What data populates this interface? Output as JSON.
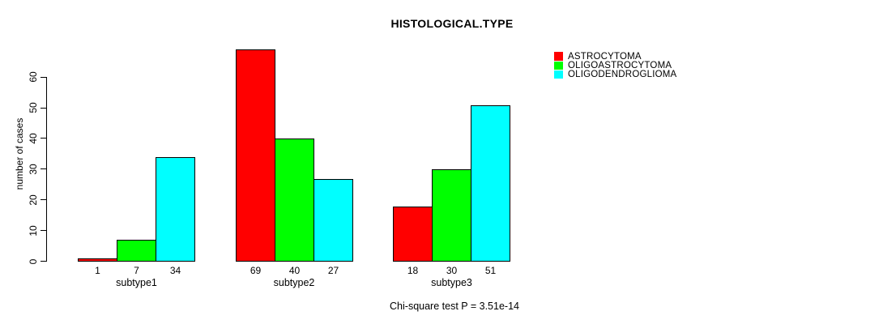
{
  "chart_data": {
    "type": "bar",
    "title": "HISTOLOGICAL.TYPE",
    "ylabel": "number of cases",
    "xlabel": "",
    "categories": [
      "subtype1",
      "subtype2",
      "subtype3"
    ],
    "series": [
      {
        "name": "ASTROCYTOMA",
        "color": "#ff0000",
        "values": [
          1,
          69,
          18
        ]
      },
      {
        "name": "OLIGOASTROCYTOMA",
        "color": "#00ff00",
        "values": [
          7,
          40,
          30
        ]
      },
      {
        "name": "OLIGODENDROGLIOMA",
        "color": "#00ffff",
        "values": [
          34,
          27,
          51
        ]
      }
    ],
    "bar_value_labels": [
      [
        "1",
        "7",
        "34"
      ],
      [
        "69",
        "40",
        "27"
      ],
      [
        "18",
        "30",
        "51"
      ]
    ],
    "yticks": [
      "0",
      "10",
      "20",
      "30",
      "40",
      "50",
      "60"
    ],
    "ylim": [
      0,
      69
    ],
    "grid": false,
    "legend_position": "top-right",
    "bar_border_color": "#000000",
    "annotation": "Chi-square test P = 3.51e-14"
  }
}
